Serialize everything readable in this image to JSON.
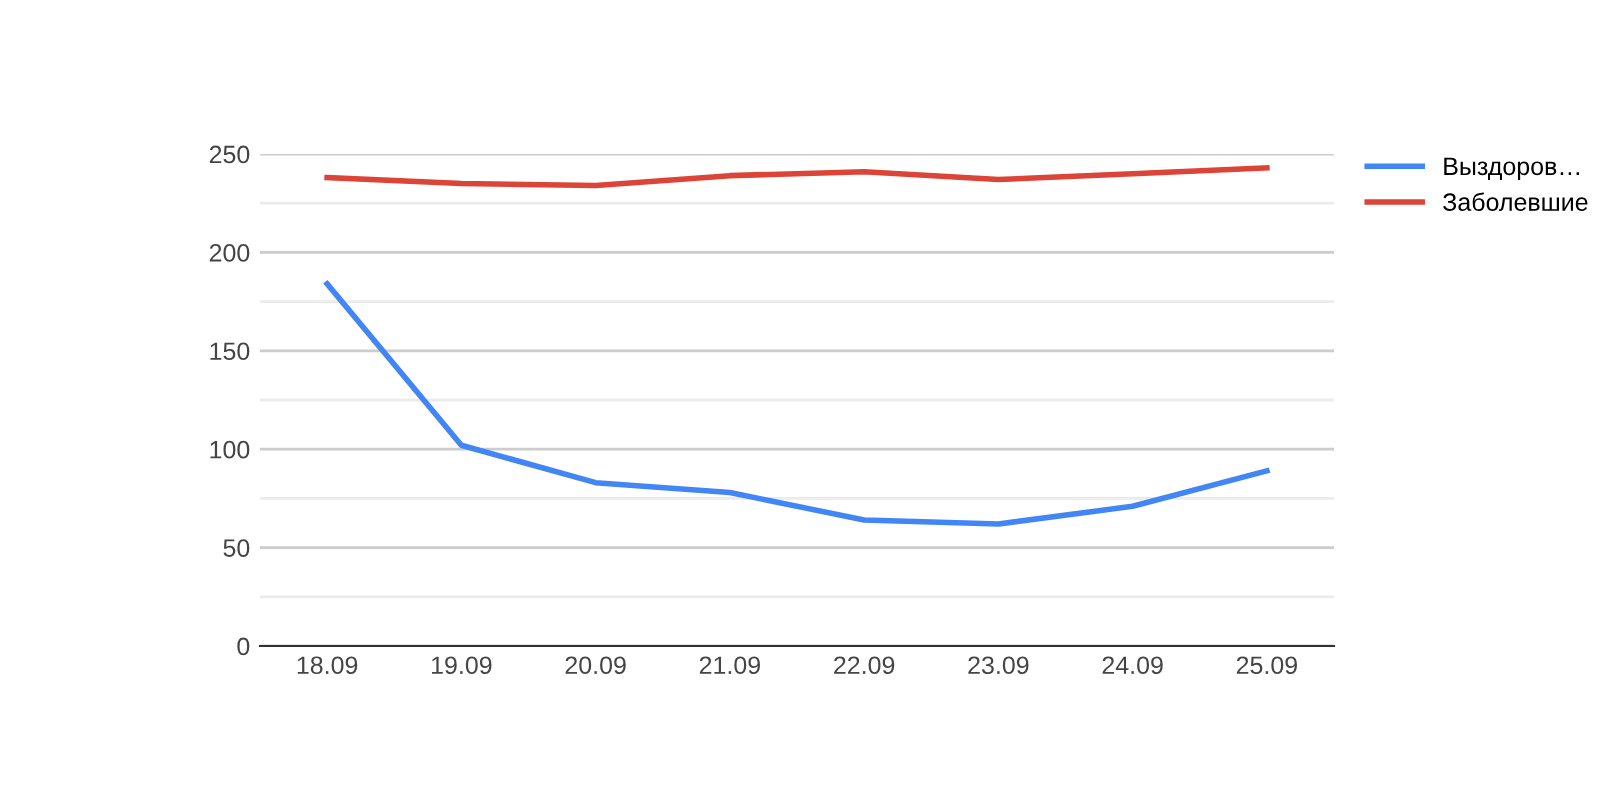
{
  "chart_data": {
    "type": "line",
    "categories": [
      "18.09",
      "19.09",
      "20.09",
      "21.09",
      "22.09",
      "23.09",
      "24.09",
      "25.09"
    ],
    "series": [
      {
        "name": "Выздоров…",
        "color": "#4285f4",
        "values": [
          184,
          102,
          83,
          78,
          64,
          62,
          71,
          89
        ]
      },
      {
        "name": "Заболевшие",
        "color": "#db4437",
        "values": [
          238,
          235,
          234,
          239,
          241,
          237,
          240,
          243
        ]
      }
    ],
    "ylim": [
      0,
      250
    ],
    "yticks": [
      0,
      {
        "value": 25,
        "label": null
      },
      50,
      {
        "value": 75,
        "label": null
      },
      100,
      {
        "value": 125,
        "label": null
      },
      150,
      {
        "value": 175,
        "label": null
      },
      200,
      {
        "value": 225,
        "label": null
      },
      250
    ],
    "grid": "y",
    "legend": "right",
    "marker": "none",
    "line_style": "solid"
  }
}
